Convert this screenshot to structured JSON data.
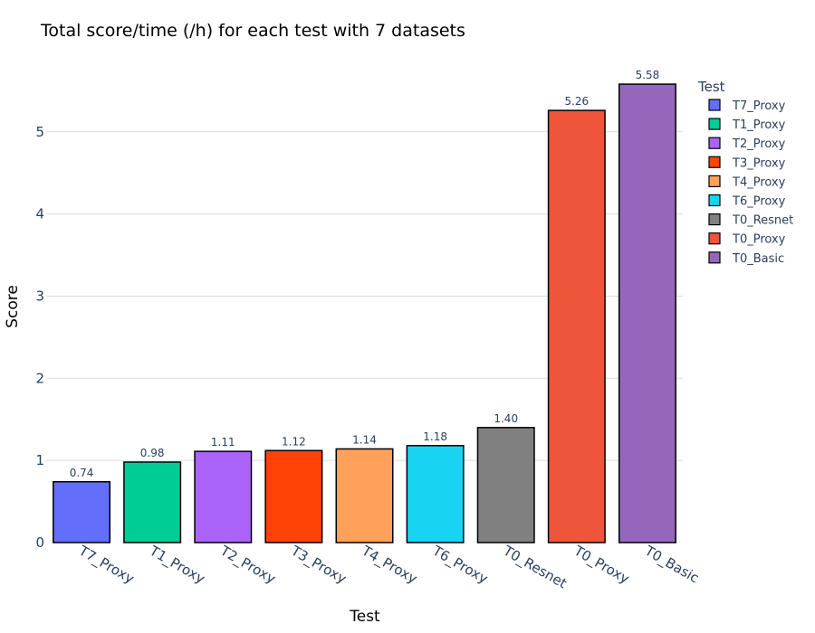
{
  "chart_data": {
    "type": "bar",
    "title": "Total score/time (/h) for each test with 7 datasets",
    "xlabel": "Test",
    "ylabel": "Score",
    "ylim": [
      0,
      5.9
    ],
    "yticks": [
      0,
      1,
      2,
      3,
      4,
      5
    ],
    "ytick_labels": [
      "0",
      "1",
      "2",
      "3",
      "4",
      "5"
    ],
    "grid": true,
    "legend_title": "Test",
    "legend_position": "right",
    "categories": [
      "T7_Proxy",
      "T1_Proxy",
      "T2_Proxy",
      "T3_Proxy",
      "T4_Proxy",
      "T6_Proxy",
      "T0_Resnet",
      "T0_Proxy",
      "T0_Basic"
    ],
    "values": [
      0.74,
      0.98,
      1.11,
      1.12,
      1.14,
      1.18,
      1.4,
      5.26,
      5.58
    ],
    "value_labels": [
      "0.74",
      "0.98",
      "1.11",
      "1.12",
      "1.14",
      "1.18",
      "1.40",
      "5.26",
      "5.58"
    ],
    "colors": [
      "#636efa",
      "#00cc96",
      "#ab63fa",
      "#ff4205",
      "#ffa15a",
      "#19d3f3",
      "#808080",
      "#ef553b",
      "#9467bd"
    ]
  }
}
